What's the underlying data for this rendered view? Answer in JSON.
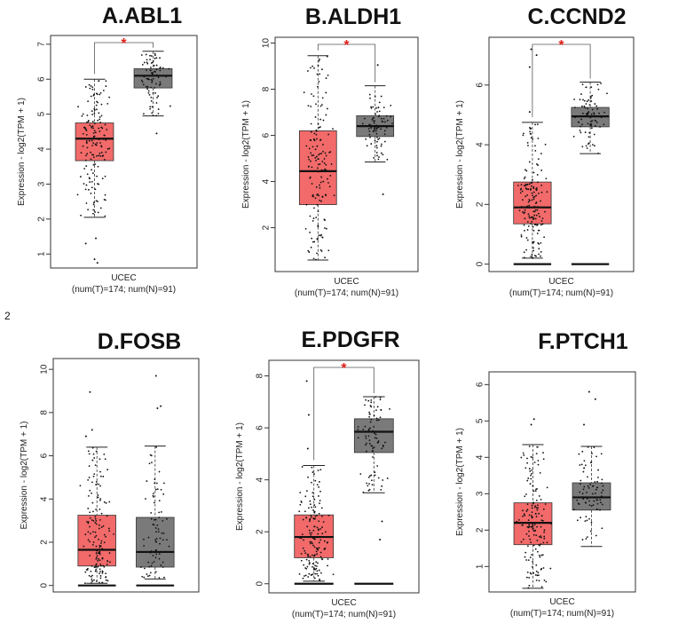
{
  "figure_note": "2",
  "colors": {
    "tumor": "#f26a6a",
    "normal": "#7a7a7a",
    "significance": "#e0201b",
    "median": "#111111"
  },
  "chart_data": [
    {
      "type": "box",
      "title": "A.ABL1",
      "ylabel": "Expression - log2(TPM + 1)",
      "xlabel": "UCEC",
      "xsub": "(num(T)=174; num(N)=91)",
      "ylim": [
        0.6,
        7.25
      ],
      "yticks": [
        1,
        2,
        3,
        4,
        5,
        6,
        7
      ],
      "significant": true,
      "significance_mark": "*",
      "boxes": [
        {
          "group": "Tumor",
          "n": 174,
          "min": 2.05,
          "q1": 3.67,
          "median": 4.3,
          "q3": 4.75,
          "max": 6.0,
          "outliers": [
            1.45,
            1.3,
            0.85,
            0.75
          ]
        },
        {
          "group": "Normal",
          "n": 91,
          "min": 4.95,
          "q1": 5.75,
          "median": 6.1,
          "q3": 6.3,
          "max": 6.8,
          "outliers": [
            4.45
          ]
        }
      ]
    },
    {
      "type": "box",
      "title": "B.ALDH1",
      "ylabel": "Expression - log2(TPM + 1)",
      "xlabel": "UCEC",
      "xsub": "(num(T)=174; num(N)=91)",
      "ylim": [
        0.1,
        10.25
      ],
      "yticks": [
        2,
        4,
        6,
        8,
        10
      ],
      "significant": true,
      "significance_mark": "*",
      "boxes": [
        {
          "group": "Tumor",
          "n": 174,
          "min": 0.6,
          "q1": 3.0,
          "median": 4.45,
          "q3": 6.2,
          "max": 9.45,
          "outliers": []
        },
        {
          "group": "Normal",
          "n": 91,
          "min": 4.85,
          "q1": 5.95,
          "median": 6.4,
          "q3": 6.85,
          "max": 8.15,
          "outliers": [
            3.45,
            9.05
          ]
        }
      ]
    },
    {
      "type": "box",
      "title": "C.CCND2",
      "ylabel": "Expression - log2(TPM + 1)",
      "xlabel": "UCEC",
      "xsub": "(num(T)=174; num(N)=91)",
      "ylim": [
        -0.25,
        7.6
      ],
      "yticks": [
        0,
        2,
        4,
        6
      ],
      "significant": true,
      "significance_mark": "*",
      "zero_bar": true,
      "boxes": [
        {
          "group": "Tumor",
          "n": 174,
          "min": 0.2,
          "q1": 1.35,
          "median": 1.9,
          "q3": 2.75,
          "max": 4.75,
          "outliers": [
            5.1,
            6.6,
            7.0,
            7.2
          ]
        },
        {
          "group": "Normal",
          "n": 91,
          "min": 3.7,
          "q1": 4.6,
          "median": 4.95,
          "q3": 5.25,
          "max": 6.1,
          "outliers": []
        }
      ]
    },
    {
      "type": "box",
      "title": "D.FOSB",
      "ylabel": "Expression - log2(TPM + 1)",
      "xlabel": "",
      "xsub": "",
      "ylim": [
        -0.3,
        10.5
      ],
      "yticks": [
        0,
        2,
        4,
        6,
        8,
        10
      ],
      "significant": false,
      "zero_bar": true,
      "boxes": [
        {
          "group": "Tumor",
          "n": 174,
          "min": 0.1,
          "q1": 0.9,
          "median": 1.65,
          "q3": 3.25,
          "max": 6.4,
          "outliers": [
            6.9,
            7.2,
            8.95
          ]
        },
        {
          "group": "Normal",
          "n": 91,
          "min": 0.3,
          "q1": 0.85,
          "median": 1.55,
          "q3": 3.15,
          "max": 6.45,
          "outliers": [
            8.2,
            8.3,
            9.7
          ]
        }
      ]
    },
    {
      "type": "box",
      "title": "E.PDGFR",
      "ylabel": "Expression - log2(TPM + 1)",
      "xlabel": "UCEC",
      "xsub": "(num(T)=174; num(N)=91)",
      "ylim": [
        -0.35,
        8.6
      ],
      "yticks": [
        0,
        2,
        4,
        6,
        8
      ],
      "significant": true,
      "significance_mark": "*",
      "zero_bar": true,
      "boxes": [
        {
          "group": "Tumor",
          "n": 174,
          "min": 0.1,
          "q1": 1.0,
          "median": 1.8,
          "q3": 2.65,
          "max": 4.55,
          "outliers": [
            5.2,
            6.5,
            7.8
          ]
        },
        {
          "group": "Normal",
          "n": 91,
          "min": 3.5,
          "q1": 5.05,
          "median": 5.85,
          "q3": 6.35,
          "max": 7.2,
          "outliers": [
            1.7,
            2.4
          ]
        }
      ]
    },
    {
      "type": "box",
      "title": "F.PTCH1",
      "ylabel": "Expression - log2(TPM + 1)",
      "xlabel": "UCEC",
      "xsub": "(num(T)=174; num(N)=91)",
      "ylim": [
        0.3,
        6.35
      ],
      "yticks": [
        1,
        2,
        3,
        4,
        5,
        6
      ],
      "significant": false,
      "boxes": [
        {
          "group": "Tumor",
          "n": 174,
          "min": 0.4,
          "q1": 1.6,
          "median": 2.2,
          "q3": 2.75,
          "max": 4.35,
          "outliers": [
            4.9,
            5.05
          ]
        },
        {
          "group": "Normal",
          "n": 91,
          "min": 1.55,
          "q1": 2.55,
          "median": 2.9,
          "q3": 3.3,
          "max": 4.3,
          "outliers": [
            4.9,
            5.6,
            5.8
          ]
        }
      ]
    }
  ]
}
